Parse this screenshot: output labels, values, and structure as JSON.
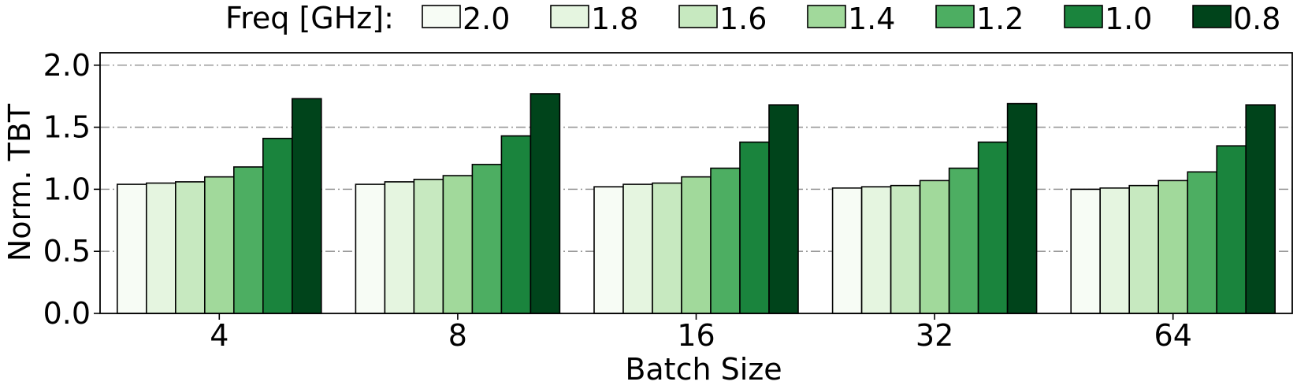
{
  "chart_data": {
    "type": "bar",
    "xlabel": "Batch Size",
    "ylabel": "Norm. TBT",
    "categories": [
      "4",
      "8",
      "16",
      "32",
      "64"
    ],
    "ylim": [
      0.0,
      2.1
    ],
    "yticks": [
      "0.0",
      "0.5",
      "1.0",
      "1.5",
      "2.0"
    ],
    "grid": true,
    "legend": {
      "title": "Freq [GHz]:",
      "placement": "top"
    },
    "series": [
      {
        "name": "2.0",
        "color": "#f7fcf5",
        "values": [
          1.04,
          1.04,
          1.02,
          1.01,
          1.0
        ]
      },
      {
        "name": "1.8",
        "color": "#e5f5e0",
        "values": [
          1.05,
          1.06,
          1.04,
          1.02,
          1.01
        ]
      },
      {
        "name": "1.6",
        "color": "#c7e9c0",
        "values": [
          1.06,
          1.08,
          1.05,
          1.03,
          1.03
        ]
      },
      {
        "name": "1.4",
        "color": "#a1d99b",
        "values": [
          1.1,
          1.11,
          1.1,
          1.07,
          1.07
        ]
      },
      {
        "name": "1.2",
        "color": "#4dae62",
        "values": [
          1.18,
          1.2,
          1.17,
          1.17,
          1.14
        ]
      },
      {
        "name": "1.0",
        "color": "#1a843d",
        "values": [
          1.41,
          1.43,
          1.38,
          1.38,
          1.35
        ]
      },
      {
        "name": "0.8",
        "color": "#00441b",
        "values": [
          1.73,
          1.77,
          1.68,
          1.69,
          1.68
        ]
      }
    ]
  }
}
